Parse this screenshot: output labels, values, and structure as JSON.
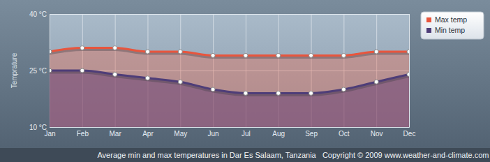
{
  "chart_data": {
    "type": "area",
    "title": "Average min and max temperatures in Dar Es Salaam, Tanzania   Copyright © 2009 www.weather-and-climate.com",
    "y_label": "Temprature",
    "categories": [
      "Jan",
      "Feb",
      "Mar",
      "Apr",
      "May",
      "Jun",
      "Jul",
      "Aug",
      "Sep",
      "Oct",
      "Nov",
      "Dec"
    ],
    "series": [
      {
        "name": "Max temp",
        "color": "#e8553d",
        "marker": "circle",
        "values": [
          30,
          31,
          31,
          30,
          30,
          29,
          29,
          29,
          29,
          29,
          30,
          30
        ]
      },
      {
        "name": "Min temp",
        "color": "#4e3d78",
        "marker": "circle",
        "values": [
          25,
          25,
          24,
          23,
          22,
          20,
          19,
          19,
          19,
          20,
          22,
          24
        ]
      }
    ],
    "ylim": [
      10,
      40
    ],
    "yticks": [
      {
        "value": 10,
        "label": "10 °C"
      },
      {
        "value": 25,
        "label": "25 °C"
      },
      {
        "value": 40,
        "label": "40 °C"
      }
    ],
    "grid": true,
    "legend": "top-right"
  }
}
